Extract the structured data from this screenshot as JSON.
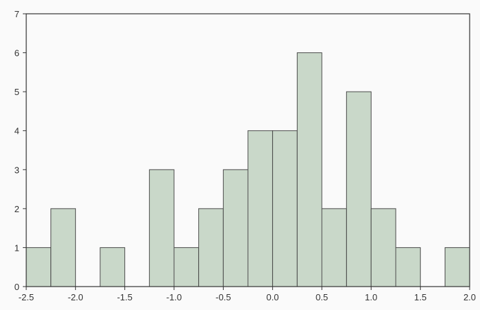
{
  "chart_data": {
    "type": "bar",
    "subtype": "histogram",
    "bin_width": 0.25,
    "bins": [
      {
        "start": -2.5,
        "end": -2.25,
        "value": 1
      },
      {
        "start": -2.25,
        "end": -2.0,
        "value": 2
      },
      {
        "start": -2.0,
        "end": -1.75,
        "value": 0
      },
      {
        "start": -1.75,
        "end": -1.5,
        "value": 1
      },
      {
        "start": -1.5,
        "end": -1.25,
        "value": 0
      },
      {
        "start": -1.25,
        "end": -1.0,
        "value": 3
      },
      {
        "start": -1.0,
        "end": -0.75,
        "value": 1
      },
      {
        "start": -0.75,
        "end": -0.5,
        "value": 2
      },
      {
        "start": -0.5,
        "end": -0.25,
        "value": 3
      },
      {
        "start": -0.25,
        "end": 0.0,
        "value": 4
      },
      {
        "start": 0.0,
        "end": 0.25,
        "value": 4
      },
      {
        "start": 0.25,
        "end": 0.5,
        "value": 6
      },
      {
        "start": 0.5,
        "end": 0.75,
        "value": 2
      },
      {
        "start": 0.75,
        "end": 1.0,
        "value": 5
      },
      {
        "start": 1.0,
        "end": 1.25,
        "value": 2
      },
      {
        "start": 1.25,
        "end": 1.5,
        "value": 1
      },
      {
        "start": 1.5,
        "end": 1.75,
        "value": 0
      },
      {
        "start": 1.75,
        "end": 2.0,
        "value": 1
      }
    ],
    "xlim": [
      -2.5,
      2.0
    ],
    "ylim": [
      0,
      7
    ],
    "x_ticks": [
      "-2.5",
      "-2.0",
      "-1.5",
      "-1.0",
      "-0.5",
      "0.0",
      "0.5",
      "1.0",
      "1.5",
      "2.0"
    ],
    "y_ticks": [
      "0",
      "1",
      "2",
      "3",
      "4",
      "5",
      "6",
      "7"
    ],
    "title": "",
    "xlabel": "",
    "ylabel": "",
    "grid": false,
    "colors": {
      "bar_fill": "#c9d8c9",
      "bar_stroke": "#4a4a4a",
      "axis": "#333333",
      "background": "#fafafa"
    }
  }
}
